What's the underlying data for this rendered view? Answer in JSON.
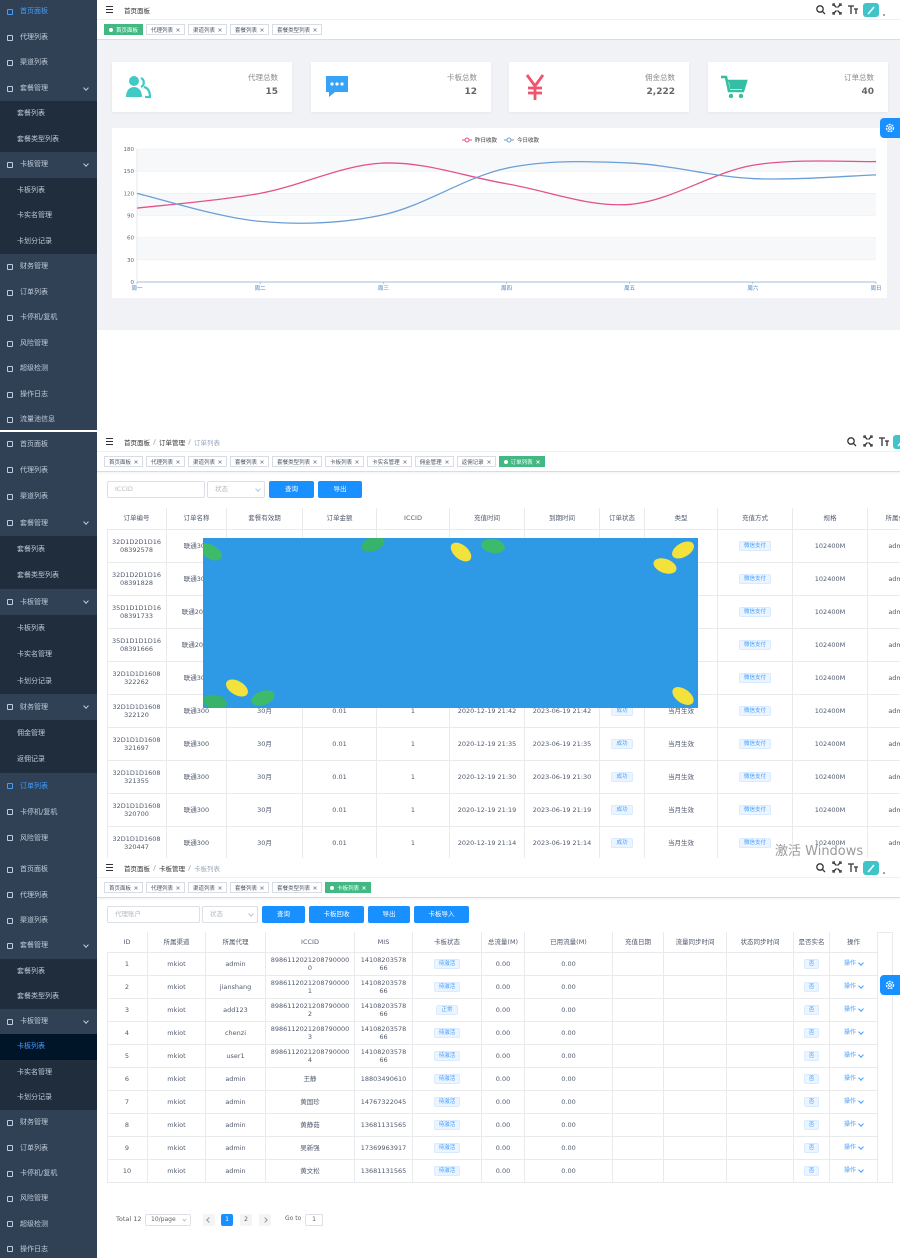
{
  "screens": [
    {
      "sidebar": [
        {
          "label": "首页面板"
        },
        {
          "label": "代理列表"
        },
        {
          "label": "渠道列表"
        },
        {
          "label": "套餐管理",
          "children": [
            "套餐列表",
            "套餐类型列表"
          ]
        },
        {
          "label": "卡板管理",
          "children": [
            "卡板列表",
            "卡实名管理",
            "卡划分记录"
          ]
        },
        {
          "label": "财务管理"
        },
        {
          "label": "订单列表"
        },
        {
          "label": "卡停机/复机"
        },
        {
          "label": "风险管理"
        },
        {
          "label": "超级检测"
        },
        {
          "label": "操作日志"
        },
        {
          "label": "流量池信息"
        }
      ],
      "breadcrumb": [
        "首页面板"
      ],
      "tags": [
        "首页面板",
        "代理列表",
        "渠道列表",
        "套餐列表",
        "套餐类型列表"
      ],
      "stats": [
        {
          "label": "代理总数",
          "value": "15"
        },
        {
          "label": "卡板总数",
          "value": "12"
        },
        {
          "label": "佣金总数",
          "value": "2,222"
        },
        {
          "label": "订单总数",
          "value": "40"
        }
      ],
      "chart": {
        "type": "line",
        "categories": [
          "周一",
          "周二",
          "周三",
          "周四",
          "周五",
          "周六",
          "周日"
        ],
        "series": [
          {
            "name": "昨日收款",
            "color": "#e5508a",
            "values": [
              100,
              120,
              161,
              133,
              105,
              158,
              163
            ]
          },
          {
            "name": "今日收款",
            "color": "#6a9fd8",
            "values": [
              120,
              82,
              91,
              154,
              161,
              140,
              145
            ]
          }
        ],
        "ylim": [
          0,
          180
        ],
        "yticks": [
          0,
          30,
          60,
          90,
          120,
          150,
          180
        ],
        "grid": true
      }
    },
    {
      "sidebar": [
        {
          "label": "首页面板"
        },
        {
          "label": "代理列表"
        },
        {
          "label": "渠道列表"
        },
        {
          "label": "套餐管理",
          "children": [
            "套餐列表",
            "套餐类型列表"
          ]
        },
        {
          "label": "卡板管理",
          "children": [
            "卡板列表",
            "卡实名管理",
            "卡划分记录"
          ]
        },
        {
          "label": "财务管理",
          "children": [
            "佣金管理",
            "返佣记录"
          ]
        },
        {
          "label": "订单列表"
        },
        {
          "label": "卡停机/复机"
        },
        {
          "label": "风险管理"
        }
      ],
      "breadcrumb": [
        "首页面板",
        "订单管理",
        "订单列表"
      ],
      "tags": [
        "首页面板",
        "代理列表",
        "渠道列表",
        "套餐列表",
        "套餐类型列表",
        "卡板列表",
        "卡实名管理",
        "佣金管理",
        "返佣记录",
        "订单列表"
      ],
      "filters": {
        "placeholders": [
          "ICCID",
          "状态"
        ],
        "buttons": [
          "查询",
          "导出"
        ]
      },
      "table": {
        "columns": [
          "订单编号",
          "订单名称",
          "套餐有效期",
          "订单金额",
          "ICCID",
          "充值时间",
          "到期时间",
          "订单状态",
          "类型",
          "充值方式",
          "规格",
          "所属代理"
        ],
        "rows": [
          [
            "32D1D2D1D1608392578",
            "联通300",
            null,
            null,
            null,
            null,
            null,
            null,
            null,
            "微信支付",
            "102400M",
            "admin"
          ],
          [
            "32D1D2D1D1608391828",
            "联通300",
            null,
            null,
            null,
            null,
            null,
            null,
            null,
            "微信支付",
            "102400M",
            "admin"
          ],
          [
            "35D1D1D1D1608391733",
            "联通2000",
            null,
            null,
            null,
            null,
            null,
            null,
            null,
            "微信支付",
            "102400M",
            "admin"
          ],
          [
            "35D1D1D1D1608391666",
            "联通2000",
            null,
            null,
            null,
            null,
            null,
            null,
            null,
            "微信支付",
            "102400M",
            "admin"
          ],
          [
            "32D1D1D1608322262",
            "联通300",
            null,
            null,
            null,
            null,
            null,
            null,
            null,
            "微信支付",
            "102400M",
            "admin"
          ],
          [
            "32D1D1D1608322120",
            "联通300",
            "30月",
            "0.01",
            "1",
            "2020-12-19 21:42",
            "2023-06-19 21:42",
            "成功",
            "当月生效",
            "微信支付",
            "102400M",
            "admin"
          ],
          [
            "32D1D1D1608321697",
            "联通300",
            "30月",
            "0.01",
            "1",
            "2020-12-19 21:35",
            "2023-06-19 21:35",
            "成功",
            "当月生效",
            "微信支付",
            "102400M",
            "admin"
          ],
          [
            "32D1D1D1608321355",
            "联通300",
            "30月",
            "0.01",
            "1",
            "2020-12-19 21:30",
            "2023-06-19 21:30",
            "成功",
            "当月生效",
            "微信支付",
            "102400M",
            "admin"
          ],
          [
            "32D1D1D1608320700",
            "联通300",
            "30月",
            "0.01",
            "1",
            "2020-12-19 21:19",
            "2023-06-19 21:19",
            "成功",
            "当月生效",
            "微信支付",
            "102400M",
            "admin"
          ],
          [
            "32D1D1D1608320447",
            "联通300",
            "30月",
            "0.01",
            "1",
            "2020-12-19 21:14",
            "2023-06-19 21:14",
            "成功",
            "当月生效",
            "微信支付",
            "102400M",
            "admin"
          ]
        ]
      },
      "watermark": "激活 Windows"
    },
    {
      "sidebar": [
        {
          "label": "首页面板"
        },
        {
          "label": "代理列表"
        },
        {
          "label": "渠道列表"
        },
        {
          "label": "套餐管理",
          "children": [
            "套餐列表",
            "套餐类型列表"
          ]
        },
        {
          "label": "卡板管理",
          "children": [
            "卡板列表",
            "卡实名管理",
            "卡划分记录"
          ]
        },
        {
          "label": "财务管理"
        },
        {
          "label": "订单列表"
        },
        {
          "label": "卡停机/复机"
        },
        {
          "label": "风险管理"
        },
        {
          "label": "超级检测"
        },
        {
          "label": "操作日志"
        }
      ],
      "breadcrumb": [
        "首页面板",
        "卡板管理",
        "卡板列表"
      ],
      "tags": [
        "首页面板",
        "代理列表",
        "渠道列表",
        "套餐列表",
        "套餐类型列表",
        "卡板列表"
      ],
      "filters": {
        "placeholders": [
          "代理账户",
          "状态"
        ],
        "buttons": [
          "查询",
          "卡板回收",
          "导出",
          "卡板导入"
        ]
      },
      "table": {
        "columns": [
          "ID",
          "所属渠道",
          "所属代理",
          "ICCID",
          "MIS",
          "卡板状态",
          "总流量(M)",
          "已用流量(M)",
          "充值日期",
          "流量同步时间",
          "状态同步时间",
          "是否实名",
          "操作"
        ],
        "rows": [
          [
            "1",
            "mkiot",
            "admin",
            "89861120212087900000",
            "1410820357866",
            "待激活",
            "0.00",
            "0.00",
            null,
            null,
            null,
            "否",
            "操作"
          ],
          [
            "2",
            "mkiot",
            "jianshang",
            "89861120212087900001",
            "1410820357866",
            "待激活",
            "0.00",
            "0.00",
            null,
            null,
            null,
            "否",
            "操作"
          ],
          [
            "3",
            "mkiot",
            "add123",
            "89861120212087900002",
            "1410820357866",
            "正常",
            "0.00",
            "0.00",
            null,
            null,
            null,
            "否",
            "操作"
          ],
          [
            "4",
            "mkiot",
            "chenzi",
            "89861120212087900003",
            "1410820357866",
            "待激活",
            "0.00",
            "0.00",
            null,
            null,
            null,
            "否",
            "操作"
          ],
          [
            "5",
            "mkiot",
            "user1",
            "89861120212087900004",
            "1410820357866",
            "待激活",
            "0.00",
            "0.00",
            null,
            null,
            null,
            "否",
            "操作"
          ],
          [
            "6",
            "mkiot",
            "admin",
            "王静",
            "18803490610",
            "待激活",
            "0.00",
            "0.00",
            null,
            null,
            null,
            "否",
            "操作"
          ],
          [
            "7",
            "mkiot",
            "admin",
            "黄国珍",
            "14767322045",
            "待激活",
            "0.00",
            "0.00",
            null,
            null,
            null,
            "否",
            "操作"
          ],
          [
            "8",
            "mkiot",
            "admin",
            "黄静茹",
            "13681131565",
            "待激活",
            "0.00",
            "0.00",
            null,
            null,
            null,
            "否",
            "操作"
          ],
          [
            "9",
            "mkiot",
            "admin",
            "吴新强",
            "17369963917",
            "待激活",
            "0.00",
            "0.00",
            null,
            null,
            null,
            "否",
            "操作"
          ],
          [
            "10",
            "mkiot",
            "admin",
            "黄文松",
            "13681131565",
            "待激活",
            "0.00",
            "0.00",
            null,
            null,
            null,
            "否",
            "操作"
          ]
        ]
      },
      "pagination": {
        "total": "Total 12",
        "page_size": "10/page",
        "pages": [
          1,
          2
        ],
        "goto": "Go to",
        "goto_value": 1
      }
    }
  ]
}
